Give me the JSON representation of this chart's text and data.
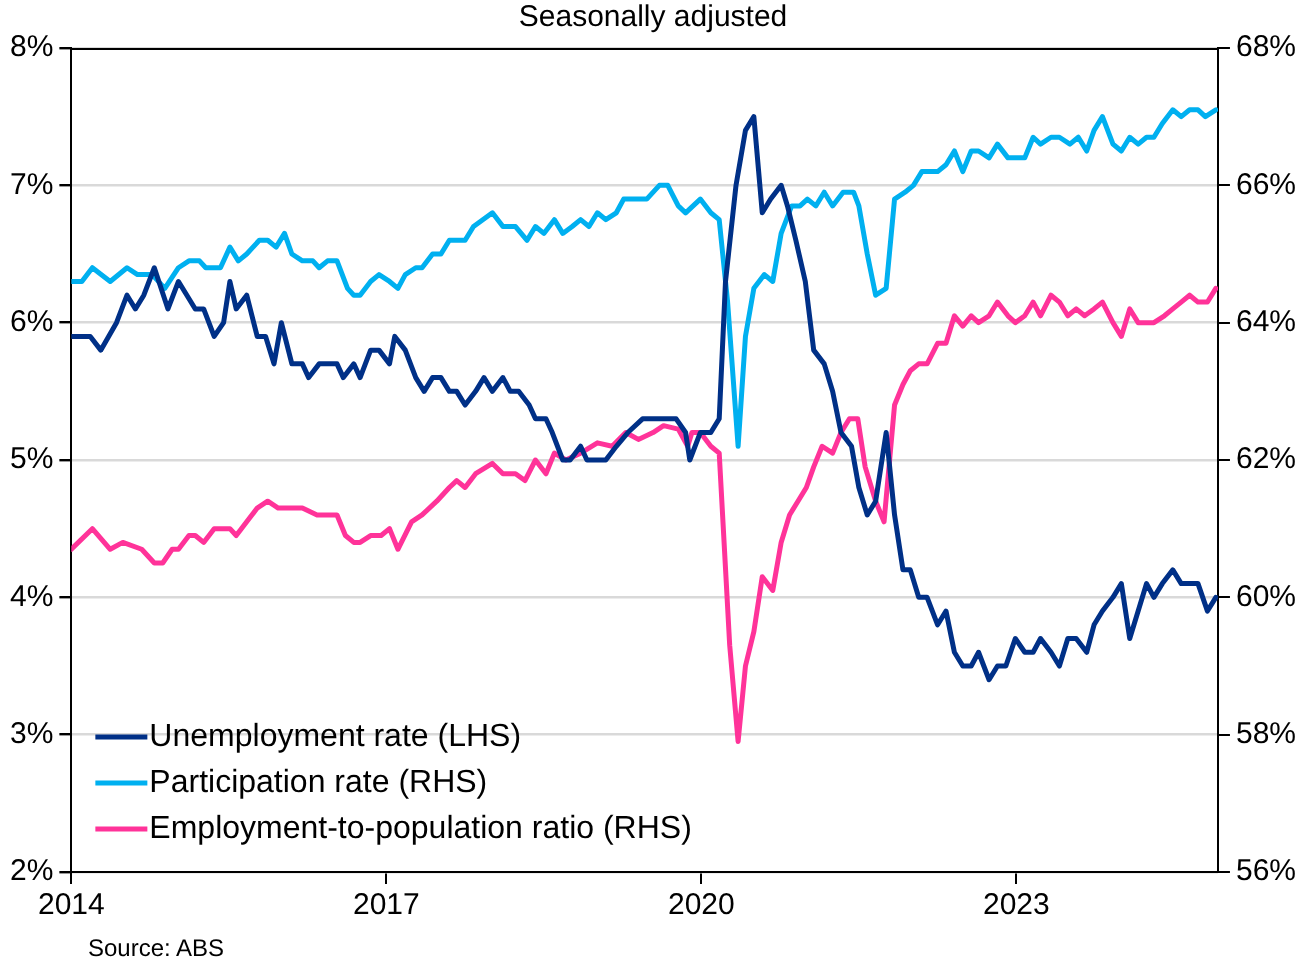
{
  "chart_data": {
    "type": "line",
    "subtitle": "Seasonally adjusted",
    "annotations": [
      "Source: ABS"
    ],
    "xlim": [
      2014,
      2024.92
    ],
    "xticks": [
      2014,
      2017,
      2020,
      2023
    ],
    "ylim": [
      2,
      8
    ],
    "yticks": [
      {
        "value": 2,
        "label": "2%"
      },
      {
        "value": 3,
        "label": "3%"
      },
      {
        "value": 4,
        "label": "4%"
      },
      {
        "value": 5,
        "label": "5%"
      },
      {
        "value": 6,
        "label": "6%"
      },
      {
        "value": 7,
        "label": "7%"
      },
      {
        "value": 8,
        "label": "8%"
      }
    ],
    "y2lim": [
      56,
      68
    ],
    "y2ticks": [
      {
        "value": 56,
        "label": "56%"
      },
      {
        "value": 58,
        "label": "58%"
      },
      {
        "value": 60,
        "label": "60%"
      },
      {
        "value": 62,
        "label": "62%"
      },
      {
        "value": 64,
        "label": "64%"
      },
      {
        "value": 66,
        "label": "66%"
      },
      {
        "value": 68,
        "label": "68%"
      }
    ],
    "grid": "y",
    "legend": "bottom left",
    "marker": "none",
    "line_style": "solid",
    "series": [
      {
        "name": "Unemployment rate (LHS)",
        "color": "#003087",
        "x": [
          2014.0,
          2014.18,
          2014.28,
          2014.43,
          2014.53,
          2014.61,
          2014.69,
          2014.79,
          2014.92,
          2015.02,
          2015.18,
          2015.26,
          2015.36,
          2015.45,
          2015.51,
          2015.57,
          2015.67,
          2015.77,
          2015.85,
          2015.93,
          2016.0,
          2016.1,
          2016.2,
          2016.26,
          2016.36,
          2016.53,
          2016.59,
          2016.69,
          2016.75,
          2016.85,
          2016.93,
          2017.03,
          2017.08,
          2017.18,
          2017.28,
          2017.36,
          2017.44,
          2017.52,
          2017.6,
          2017.67,
          2017.75,
          2017.85,
          2017.93,
          2018.01,
          2018.11,
          2018.18,
          2018.26,
          2018.36,
          2018.42,
          2018.52,
          2018.58,
          2018.68,
          2018.75,
          2018.85,
          2018.91,
          2019.09,
          2019.19,
          2019.3,
          2019.44,
          2019.6,
          2019.76,
          2019.85,
          2019.89,
          2019.99,
          2020.09,
          2020.17,
          2020.23,
          2020.33,
          2020.42,
          2020.5,
          2020.58,
          2020.66,
          2020.76,
          2020.82,
          2020.9,
          2020.99,
          2021.07,
          2021.17,
          2021.25,
          2021.33,
          2021.43,
          2021.5,
          2021.58,
          2021.66,
          2021.76,
          2021.84,
          2021.92,
          2021.99,
          2022.07,
          2022.15,
          2022.25,
          2022.33,
          2022.41,
          2022.49,
          2022.57,
          2022.64,
          2022.74,
          2022.82,
          2022.9,
          2022.99,
          2023.08,
          2023.16,
          2023.23,
          2023.33,
          2023.41,
          2023.49,
          2023.57,
          2023.67,
          2023.74,
          2023.82,
          2023.92,
          2024.0,
          2024.08,
          2024.16,
          2024.24,
          2024.31,
          2024.39,
          2024.49,
          2024.57,
          2024.65,
          2024.73,
          2024.82,
          2024.9
        ],
        "values": [
          5.9,
          5.9,
          5.8,
          6.0,
          6.2,
          6.1,
          6.2,
          6.4,
          6.1,
          6.3,
          6.1,
          6.1,
          5.9,
          6.0,
          6.3,
          6.1,
          6.2,
          5.9,
          5.9,
          5.7,
          6.0,
          5.7,
          5.7,
          5.6,
          5.7,
          5.7,
          5.6,
          5.7,
          5.6,
          5.8,
          5.8,
          5.7,
          5.9,
          5.8,
          5.6,
          5.5,
          5.6,
          5.6,
          5.5,
          5.5,
          5.4,
          5.5,
          5.6,
          5.5,
          5.6,
          5.5,
          5.5,
          5.4,
          5.3,
          5.3,
          5.2,
          5.0,
          5.0,
          5.1,
          5.0,
          5.0,
          5.1,
          5.2,
          5.3,
          5.3,
          5.3,
          5.2,
          5.0,
          5.2,
          5.2,
          5.3,
          6.3,
          7.0,
          7.4,
          7.5,
          6.8,
          6.9,
          7.0,
          6.85,
          6.6,
          6.3,
          5.8,
          5.7,
          5.5,
          5.2,
          5.1,
          4.8,
          4.6,
          4.7,
          5.2,
          4.6,
          4.2,
          4.2,
          4.0,
          4.0,
          3.8,
          3.9,
          3.6,
          3.5,
          3.5,
          3.6,
          3.4,
          3.5,
          3.5,
          3.7,
          3.6,
          3.6,
          3.7,
          3.6,
          3.5,
          3.7,
          3.7,
          3.6,
          3.8,
          3.9,
          4.0,
          4.1,
          3.7,
          3.9,
          4.1,
          4.0,
          4.1,
          4.2,
          4.1,
          4.1,
          4.1,
          3.9,
          4.0
        ]
      },
      {
        "name": "Participation rate (RHS)",
        "color": "#00b0f0",
        "axis": "y2",
        "x": [
          2014.0,
          2014.1,
          2014.2,
          2014.37,
          2014.53,
          2014.63,
          2014.77,
          2014.89,
          2015.02,
          2015.12,
          2015.22,
          2015.28,
          2015.42,
          2015.51,
          2015.59,
          2015.67,
          2015.79,
          2015.87,
          2015.95,
          2016.03,
          2016.1,
          2016.2,
          2016.3,
          2016.36,
          2016.44,
          2016.53,
          2016.63,
          2016.69,
          2016.75,
          2016.85,
          2016.93,
          2017.03,
          2017.11,
          2017.18,
          2017.28,
          2017.34,
          2017.44,
          2017.52,
          2017.6,
          2017.75,
          2017.83,
          2018.01,
          2018.11,
          2018.23,
          2018.34,
          2018.42,
          2018.5,
          2018.6,
          2018.68,
          2018.77,
          2018.85,
          2018.93,
          2019.01,
          2019.09,
          2019.19,
          2019.26,
          2019.48,
          2019.6,
          2019.68,
          2019.78,
          2019.85,
          2019.99,
          2020.09,
          2020.17,
          2020.25,
          2020.35,
          2020.42,
          2020.5,
          2020.6,
          2020.68,
          2020.76,
          2020.86,
          2020.94,
          2021.01,
          2021.09,
          2021.17,
          2021.25,
          2021.35,
          2021.45,
          2021.5,
          2021.58,
          2021.66,
          2021.76,
          2021.84,
          2021.94,
          2022.02,
          2022.1,
          2022.25,
          2022.33,
          2022.41,
          2022.49,
          2022.57,
          2022.64,
          2022.74,
          2022.82,
          2022.92,
          2023.08,
          2023.16,
          2023.23,
          2023.33,
          2023.41,
          2023.51,
          2023.59,
          2023.67,
          2023.74,
          2023.82,
          2023.92,
          2024.0,
          2024.08,
          2024.16,
          2024.24,
          2024.31,
          2024.39,
          2024.49,
          2024.57,
          2024.65,
          2024.73,
          2024.8,
          2024.9
        ],
        "values": [
          64.6,
          64.6,
          64.8,
          64.6,
          64.8,
          64.7,
          64.7,
          64.5,
          64.8,
          64.9,
          64.9,
          64.8,
          64.8,
          65.1,
          64.9,
          65.0,
          65.2,
          65.2,
          65.1,
          65.3,
          65.0,
          64.9,
          64.9,
          64.8,
          64.9,
          64.9,
          64.5,
          64.4,
          64.4,
          64.6,
          64.7,
          64.6,
          64.5,
          64.7,
          64.8,
          64.8,
          65.0,
          65.0,
          65.2,
          65.2,
          65.4,
          65.6,
          65.4,
          65.4,
          65.2,
          65.4,
          65.3,
          65.5,
          65.3,
          65.4,
          65.5,
          65.4,
          65.6,
          65.5,
          65.6,
          65.8,
          65.8,
          66.0,
          66.0,
          65.7,
          65.6,
          65.8,
          65.6,
          65.5,
          64.3,
          62.2,
          63.8,
          64.5,
          64.7,
          64.6,
          65.3,
          65.7,
          65.7,
          65.8,
          65.7,
          65.9,
          65.7,
          65.9,
          65.9,
          65.7,
          65.0,
          64.4,
          64.5,
          65.8,
          65.9,
          66.0,
          66.2,
          66.2,
          66.3,
          66.5,
          66.2,
          66.5,
          66.5,
          66.4,
          66.6,
          66.4,
          66.4,
          66.7,
          66.6,
          66.7,
          66.7,
          66.6,
          66.7,
          66.5,
          66.8,
          67.0,
          66.6,
          66.5,
          66.7,
          66.6,
          66.7,
          66.7,
          66.9,
          67.1,
          67.0,
          67.1,
          67.1,
          67.0,
          67.1
        ]
      },
      {
        "name": "Employment-to-population ratio (RHS)",
        "color": "#ff3399",
        "axis": "y2",
        "x": [
          2014.0,
          2014.2,
          2014.37,
          2014.49,
          2014.67,
          2014.79,
          2014.87,
          2014.96,
          2015.02,
          2015.12,
          2015.18,
          2015.26,
          2015.36,
          2015.42,
          2015.51,
          2015.57,
          2015.67,
          2015.77,
          2015.87,
          2015.97,
          2016.1,
          2016.2,
          2016.34,
          2016.42,
          2016.53,
          2016.61,
          2016.69,
          2016.75,
          2016.85,
          2016.95,
          2017.03,
          2017.11,
          2017.24,
          2017.34,
          2017.48,
          2017.6,
          2017.67,
          2017.75,
          2017.85,
          2018.01,
          2018.11,
          2018.23,
          2018.32,
          2018.42,
          2018.52,
          2018.6,
          2018.71,
          2018.85,
          2019.01,
          2019.15,
          2019.28,
          2019.4,
          2019.54,
          2019.64,
          2019.78,
          2019.87,
          2019.91,
          2019.99,
          2020.09,
          2020.17,
          2020.27,
          2020.35,
          2020.42,
          2020.5,
          2020.58,
          2020.68,
          2020.76,
          2020.84,
          2020.92,
          2021.0,
          2021.07,
          2021.15,
          2021.25,
          2021.33,
          2021.41,
          2021.49,
          2021.56,
          2021.66,
          2021.74,
          2021.84,
          2021.92,
          2021.99,
          2022.07,
          2022.15,
          2022.25,
          2022.33,
          2022.41,
          2022.49,
          2022.57,
          2022.64,
          2022.74,
          2022.82,
          2022.92,
          2022.99,
          2023.08,
          2023.16,
          2023.23,
          2023.33,
          2023.41,
          2023.49,
          2023.57,
          2023.65,
          2023.74,
          2023.82,
          2023.92,
          2024.0,
          2024.08,
          2024.16,
          2024.31,
          2024.41,
          2024.49,
          2024.57,
          2024.65,
          2024.73,
          2024.82,
          2024.9
        ],
        "values": [
          60.7,
          61.0,
          60.7,
          60.8,
          60.7,
          60.5,
          60.5,
          60.7,
          60.7,
          60.9,
          60.9,
          60.8,
          61.0,
          61.0,
          61.0,
          60.9,
          61.1,
          61.3,
          61.4,
          61.3,
          61.3,
          61.3,
          61.2,
          61.2,
          61.2,
          60.9,
          60.8,
          60.8,
          60.9,
          60.9,
          61.0,
          60.7,
          61.1,
          61.2,
          61.4,
          61.6,
          61.7,
          61.6,
          61.8,
          61.95,
          61.8,
          61.8,
          61.7,
          62.0,
          61.8,
          62.1,
          62.0,
          62.1,
          62.25,
          62.2,
          62.4,
          62.3,
          62.4,
          62.5,
          62.45,
          62.2,
          62.4,
          62.4,
          62.2,
          62.1,
          59.3,
          57.9,
          59.0,
          59.5,
          60.3,
          60.1,
          60.8,
          61.2,
          61.4,
          61.6,
          61.9,
          62.2,
          62.1,
          62.4,
          62.6,
          62.6,
          61.9,
          61.4,
          61.1,
          62.8,
          63.1,
          63.3,
          63.4,
          63.4,
          63.7,
          63.7,
          64.1,
          63.95,
          64.1,
          64.0,
          64.1,
          64.3,
          64.1,
          64.0,
          64.1,
          64.3,
          64.1,
          64.4,
          64.3,
          64.1,
          64.2,
          64.1,
          64.2,
          64.3,
          64.0,
          63.8,
          64.2,
          64.0,
          64.0,
          64.1,
          64.2,
          64.3,
          64.4,
          64.3,
          64.3,
          64.5
        ]
      }
    ]
  }
}
